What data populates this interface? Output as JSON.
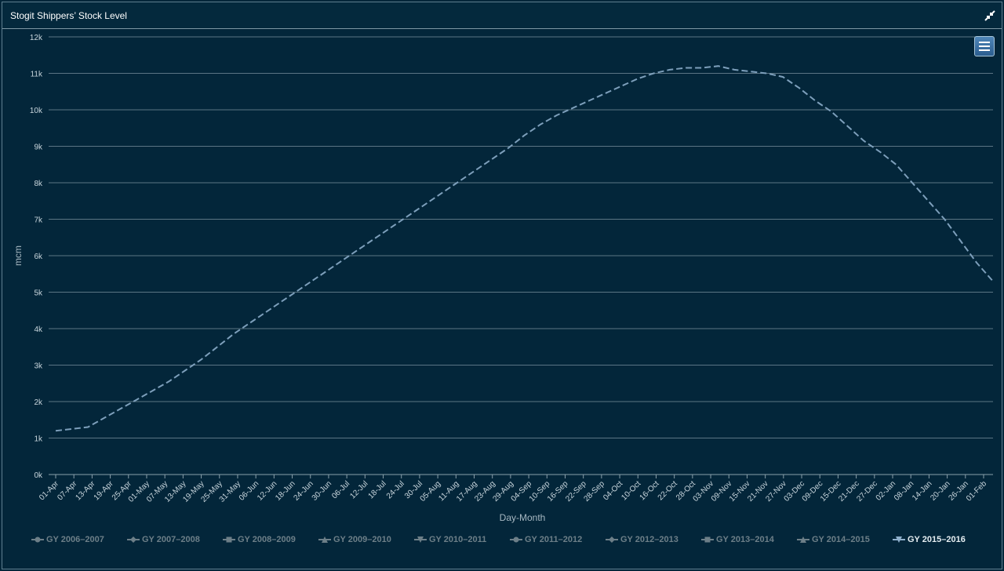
{
  "panel": {
    "title": "Stogit Shippers’ Stock Level",
    "collapse_icon": "compress-icon",
    "menu_icon": "hamburger-icon"
  },
  "colors": {
    "background": "#03263a",
    "grid": "#5b7584",
    "active_series": "#7d9fbb",
    "inactive_legend": "#6d7f88"
  },
  "chart_data": {
    "type": "line",
    "title": "",
    "xlabel": "Day-Month",
    "ylabel": "mcm",
    "ylim": [
      0,
      12000
    ],
    "yticks": [
      "0k",
      "1k",
      "2k",
      "3k",
      "4k",
      "5k",
      "6k",
      "7k",
      "8k",
      "9k",
      "10k",
      "11k",
      "12k"
    ],
    "xticks": [
      "01-Apr",
      "07-Apr",
      "13-Apr",
      "19-Apr",
      "25-Apr",
      "01-May",
      "07-May",
      "13-May",
      "19-May",
      "25-May",
      "31-May",
      "06-Jun",
      "12-Jun",
      "18-Jun",
      "24-Jun",
      "30-Jun",
      "06-Jul",
      "12-Jul",
      "18-Jul",
      "24-Jul",
      "30-Jul",
      "05-Aug",
      "11-Aug",
      "17-Aug",
      "23-Aug",
      "29-Aug",
      "04-Sep",
      "10-Sep",
      "16-Sep",
      "22-Sep",
      "28-Sep",
      "04-Oct",
      "10-Oct",
      "16-Oct",
      "22-Oct",
      "28-Oct",
      "03-Nov",
      "09-Nov",
      "15-Nov",
      "21-Nov",
      "27-Nov",
      "03-Dec",
      "09-Dec",
      "15-Dec",
      "21-Dec",
      "27-Dec",
      "02-Jan",
      "08-Jan",
      "14-Jan",
      "20-Jan",
      "26-Jan",
      "01-Feb"
    ],
    "grid": true,
    "legend_position": "bottom",
    "series": [
      {
        "name": "GY 2006–2007",
        "visible": false,
        "symbol": "circle",
        "values": []
      },
      {
        "name": "GY 2007–2008",
        "visible": false,
        "symbol": "diamond",
        "values": []
      },
      {
        "name": "GY 2008–2009",
        "visible": false,
        "symbol": "square",
        "values": []
      },
      {
        "name": "GY 2009–2010",
        "visible": false,
        "symbol": "triangle",
        "values": []
      },
      {
        "name": "GY 2010–2011",
        "visible": false,
        "symbol": "triangle-down",
        "values": []
      },
      {
        "name": "GY 2011–2012",
        "visible": false,
        "symbol": "circle",
        "values": []
      },
      {
        "name": "GY 2012–2013",
        "visible": false,
        "symbol": "diamond",
        "values": []
      },
      {
        "name": "GY 2013–2014",
        "visible": false,
        "symbol": "square",
        "values": []
      },
      {
        "name": "GY 2014–2015",
        "visible": false,
        "symbol": "triangle",
        "values": []
      },
      {
        "name": "GY 2015–2016",
        "visible": true,
        "symbol": "triangle-down",
        "values": [
          1200,
          1250,
          1300,
          1550,
          1800,
          2050,
          2300,
          2550,
          2850,
          3150,
          3500,
          3850,
          4150,
          4450,
          4750,
          5050,
          5350,
          5650,
          5950,
          6250,
          6550,
          6850,
          7150,
          7450,
          7750,
          8050,
          8350,
          8650,
          8950,
          9300,
          9600,
          9850,
          10050,
          10250,
          10450,
          10650,
          10850,
          11000,
          11100,
          11150,
          11150,
          11200,
          11100,
          11050,
          11000,
          10900,
          10600,
          10250,
          9950,
          9550,
          9150,
          8850,
          8500,
          8000,
          7500,
          7000,
          6400,
          5800,
          5300
        ]
      }
    ]
  }
}
